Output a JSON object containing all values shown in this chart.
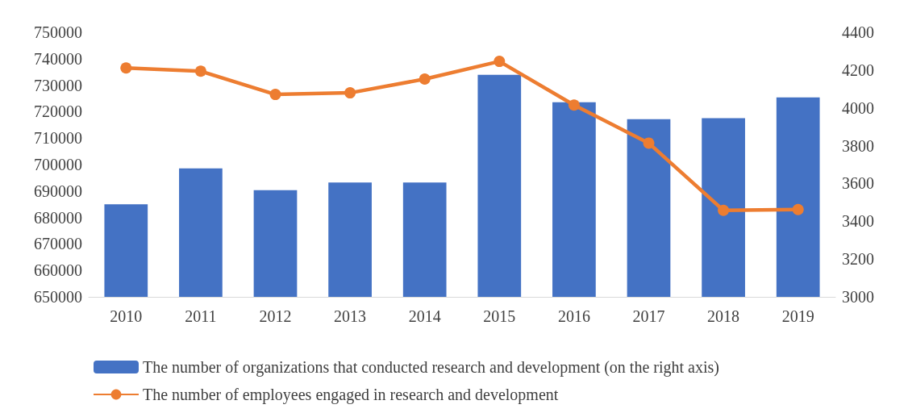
{
  "chart_data": {
    "type": "bar",
    "categories": [
      "2010",
      "2011",
      "2012",
      "2013",
      "2014",
      "2015",
      "2016",
      "2017",
      "2018",
      "2019"
    ],
    "series": [
      {
        "name": "The number of organizations that conducted research and development (on the right axis)",
        "axis": "y2",
        "color": "#4472c4",
        "values": [
          3490,
          3680,
          3565,
          3605,
          3605,
          4175,
          4030,
          3940,
          3945,
          4055
        ]
      },
      {
        "name": "The number of employees engaged in research and development",
        "type": "line",
        "axis": "y",
        "color": "#ed7d31",
        "marker": "circle",
        "values": [
          736500,
          735300,
          726500,
          727100,
          732300,
          739000,
          722500,
          708100,
          682700,
          683000
        ]
      }
    ],
    "ylim": [
      650000,
      750000
    ],
    "yticks": [
      650000,
      660000,
      670000,
      680000,
      690000,
      700000,
      710000,
      720000,
      730000,
      740000,
      750000
    ],
    "y2lim": [
      3000,
      4400
    ],
    "y2ticks": [
      3000,
      3200,
      3400,
      3600,
      3800,
      4000,
      4200,
      4400
    ],
    "grid": false,
    "legend": "bottom"
  }
}
